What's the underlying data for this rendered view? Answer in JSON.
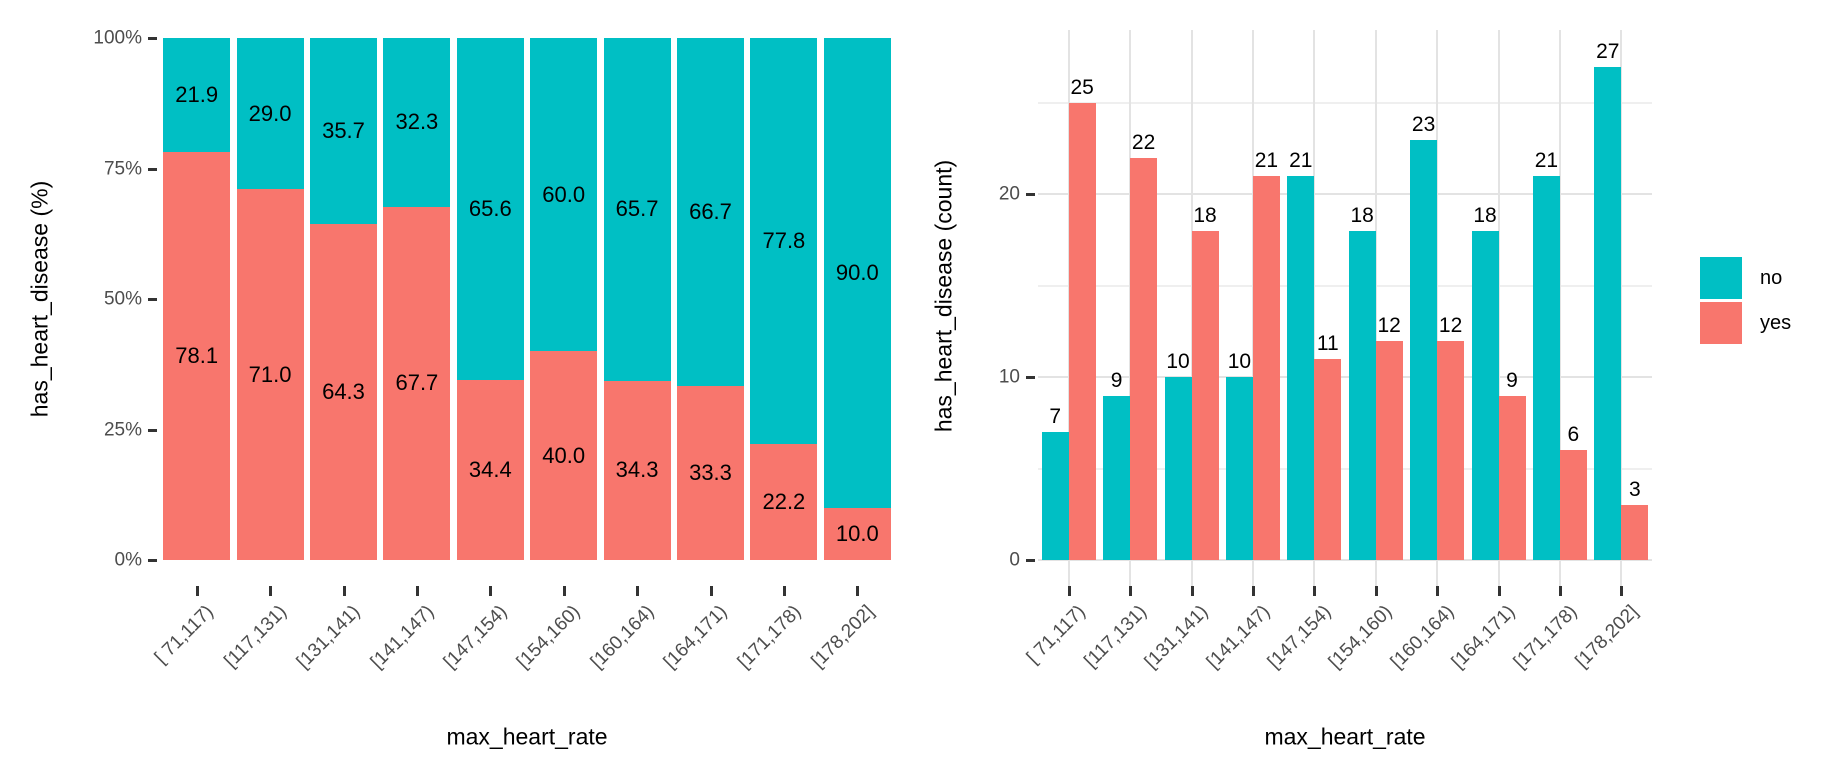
{
  "legend": {
    "items": [
      {
        "label": "no",
        "color": "#00BFC4"
      },
      {
        "label": "yes",
        "color": "#F8766D"
      }
    ]
  },
  "chart_data": [
    {
      "type": "bar",
      "stacking": "percent",
      "title": "",
      "xlabel": "max_heart_rate",
      "ylabel": "has_heart_disease  (%)",
      "categories": [
        "[ 71,117)",
        "[117,131)",
        "[131,141)",
        "[141,147)",
        "[147,154)",
        "[154,160)",
        "[160,164)",
        "[164,171)",
        "[171,178)",
        "[178,202]"
      ],
      "series": [
        {
          "name": "no",
          "color": "#00BFC4",
          "values": [
            21.9,
            29.0,
            35.7,
            32.3,
            65.6,
            60.0,
            65.7,
            66.7,
            77.8,
            90.0
          ],
          "labels": [
            "21.9",
            "29.0",
            "35.7",
            "32.3",
            "65.6",
            "60.0",
            "65.7",
            "66.7",
            "77.8",
            "90.0"
          ]
        },
        {
          "name": "yes",
          "color": "#F8766D",
          "values": [
            78.1,
            71.0,
            64.3,
            67.7,
            34.4,
            40.0,
            34.3,
            33.3,
            22.2,
            10.0
          ],
          "labels": [
            "78.1",
            "71.0",
            "64.3",
            "67.7",
            "34.4",
            "40.0",
            "34.3",
            "33.3",
            "22.2",
            "10.0"
          ]
        }
      ],
      "ylim": [
        0,
        100
      ],
      "y_ticks": [
        {
          "value": 0,
          "label": "0%"
        },
        {
          "value": 25,
          "label": "25%"
        },
        {
          "value": 50,
          "label": "50%"
        },
        {
          "value": 75,
          "label": "75%"
        },
        {
          "value": 100,
          "label": "100%"
        }
      ],
      "grid": false,
      "legend_position": "none"
    },
    {
      "type": "bar",
      "stacking": "dodge",
      "title": "",
      "xlabel": "max_heart_rate",
      "ylabel": "has_heart_disease  (count)",
      "categories": [
        "[ 71,117)",
        "[117,131)",
        "[131,141)",
        "[141,147)",
        "[147,154)",
        "[154,160)",
        "[160,164)",
        "[164,171)",
        "[171,178)",
        "[178,202]"
      ],
      "series": [
        {
          "name": "no",
          "color": "#00BFC4",
          "values": [
            7,
            9,
            10,
            10,
            21,
            18,
            23,
            18,
            21,
            27
          ],
          "labels": [
            "7",
            "9",
            "10",
            "10",
            "21",
            "18",
            "23",
            "18",
            "21",
            "27"
          ]
        },
        {
          "name": "yes",
          "color": "#F8766D",
          "values": [
            25,
            22,
            18,
            21,
            11,
            12,
            12,
            9,
            6,
            3
          ],
          "labels": [
            "25",
            "22",
            "18",
            "21",
            "11",
            "12",
            "12",
            "9",
            "6",
            "3"
          ]
        }
      ],
      "ylim": [
        0,
        29
      ],
      "y_ticks": [
        {
          "value": 0,
          "label": "0"
        },
        {
          "value": 10,
          "label": "10"
        },
        {
          "value": 20,
          "label": "20"
        }
      ],
      "y_minor": [
        5,
        15,
        25
      ],
      "grid": true,
      "grid_major_color": "#E3E3E3",
      "grid_minor_color": "#EFEFEF",
      "legend_position": "right"
    }
  ],
  "axis_style": {
    "tick_color": "#333333",
    "tick_label_color": "#4d4d4d",
    "title_color": "#000000"
  }
}
